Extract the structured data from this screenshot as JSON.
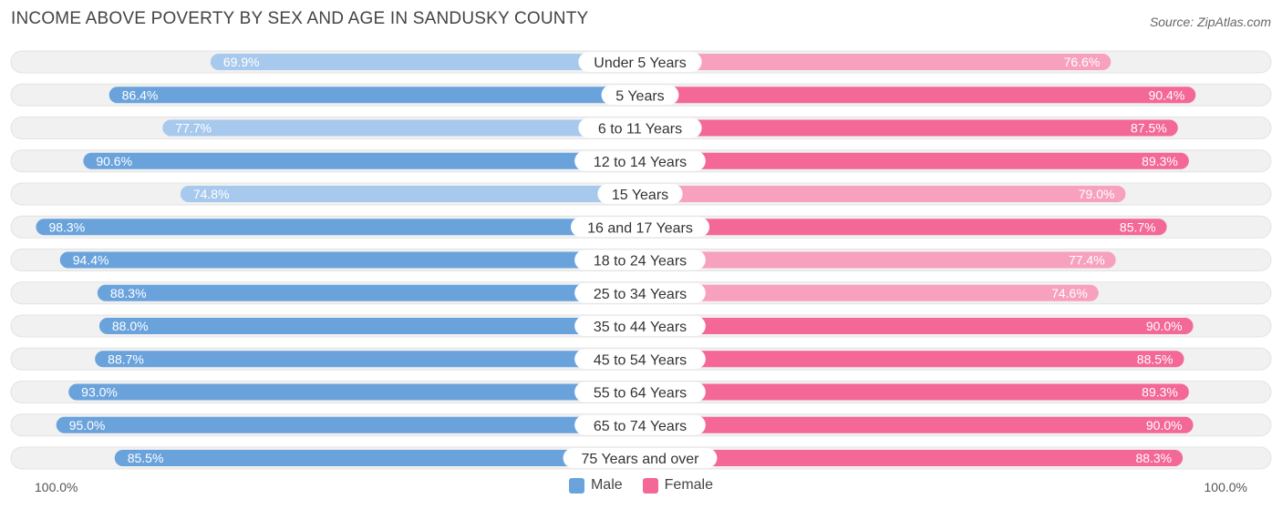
{
  "header": {
    "title": "INCOME ABOVE POVERTY BY SEX AND AGE IN SANDUSKY COUNTY",
    "source": "Source: ZipAtlas.com"
  },
  "axis": {
    "left_label": "100.0%",
    "right_label": "100.0%"
  },
  "legend": {
    "male_label": "Male",
    "female_label": "Female"
  },
  "colors": {
    "male_strong": "#6aa3dc",
    "male_light": "#a8c9ee",
    "female_strong": "#f36896",
    "female_light": "#f7a1bf",
    "track": "#f1f1f1",
    "track_border": "#e3e3e3"
  },
  "chart_data": {
    "type": "bar",
    "orientation": "horizontal-diverging",
    "title": "INCOME ABOVE POVERTY BY SEX AND AGE IN SANDUSKY COUNTY",
    "xlim": [
      -100,
      100
    ],
    "categories": [
      "Under 5 Years",
      "5 Years",
      "6 to 11 Years",
      "12 to 14 Years",
      "15 Years",
      "16 and 17 Years",
      "18 to 24 Years",
      "25 to 34 Years",
      "35 to 44 Years",
      "45 to 54 Years",
      "55 to 64 Years",
      "65 to 74 Years",
      "75 Years and over"
    ],
    "series": [
      {
        "name": "Male",
        "values": [
          69.9,
          86.4,
          77.7,
          90.6,
          74.8,
          98.3,
          94.4,
          88.3,
          88.0,
          88.7,
          93.0,
          95.0,
          85.5
        ],
        "labels": [
          "69.9%",
          "86.4%",
          "77.7%",
          "90.6%",
          "74.8%",
          "98.3%",
          "94.4%",
          "88.3%",
          "88.0%",
          "88.7%",
          "93.0%",
          "95.0%",
          "85.5%"
        ]
      },
      {
        "name": "Female",
        "values": [
          76.6,
          90.4,
          87.5,
          89.3,
          79.0,
          85.7,
          77.4,
          74.6,
          90.0,
          88.5,
          89.3,
          90.0,
          88.3
        ],
        "labels": [
          "76.6%",
          "90.4%",
          "87.5%",
          "89.3%",
          "79.0%",
          "85.7%",
          "77.4%",
          "74.6%",
          "90.0%",
          "88.5%",
          "89.3%",
          "90.0%",
          "88.3%"
        ]
      }
    ]
  }
}
